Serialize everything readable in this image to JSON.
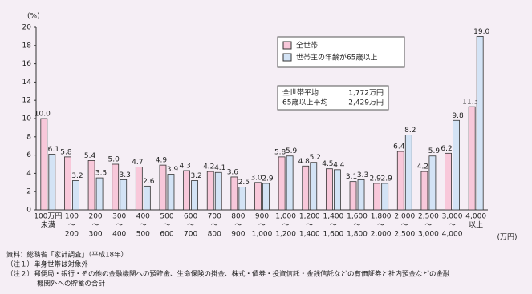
{
  "chart_data": {
    "type": "bar",
    "y_unit": "(%)",
    "x_unit": "(万円)",
    "categories": [
      [
        "100万円",
        "未満"
      ],
      [
        "100",
        "～",
        "200"
      ],
      [
        "200",
        "～",
        "300"
      ],
      [
        "300",
        "～",
        "400"
      ],
      [
        "400",
        "～",
        "500"
      ],
      [
        "500",
        "～",
        "600"
      ],
      [
        "600",
        "～",
        "700"
      ],
      [
        "700",
        "～",
        "800"
      ],
      [
        "800",
        "～",
        "900"
      ],
      [
        "900",
        "～",
        "1,000"
      ],
      [
        "1,000",
        "～",
        "1,200"
      ],
      [
        "1,200",
        "～",
        "1,400"
      ],
      [
        "1,400",
        "～",
        "1,600"
      ],
      [
        "1,600",
        "～",
        "1,800"
      ],
      [
        "1,800",
        "～",
        "2,000"
      ],
      [
        "2,000",
        "～",
        "2,500"
      ],
      [
        "2,500",
        "～",
        "3,000"
      ],
      [
        "3,000",
        "～",
        "4,000"
      ],
      [
        "4,000",
        "以上"
      ]
    ],
    "series": [
      {
        "name": "全世帯",
        "color": "#f8c8da",
        "values": [
          10,
          5.8,
          5.4,
          5,
          4.7,
          4.9,
          4.3,
          4.2,
          3.6,
          3,
          5.8,
          4.8,
          4.5,
          3.1,
          2.9,
          6.4,
          4.2,
          6.2,
          11.3
        ],
        "value_labels": [
          "10.0",
          "5.8",
          "5.4",
          "5.0",
          "4.7",
          "4.9",
          "4.3",
          "4.2",
          "3.6",
          "3.0",
          "5.8",
          "4.8",
          "4.5",
          "3.1",
          "2.9",
          "6.4",
          "4.2",
          "6.2",
          "11.3"
        ]
      },
      {
        "name": "世帯主の年齢が65歳以上",
        "color": "#d3e3f5",
        "values": [
          6.1,
          3.2,
          3.5,
          3.3,
          2.6,
          3.9,
          3.2,
          4.1,
          2.5,
          2.9,
          5.9,
          5.2,
          4.4,
          3.3,
          2.9,
          8.2,
          5.9,
          9.8,
          19
        ],
        "value_labels": [
          "6.1",
          "3.2",
          "3.5",
          "3.3",
          "2.6",
          "3.9",
          "3.2",
          "4.1",
          "2.5",
          "2.9",
          "5.9",
          "5.2",
          "4.4",
          "3.3",
          "2.9",
          "8.2",
          "5.9",
          "9.8",
          "19.0"
        ]
      }
    ],
    "ylim": [
      0,
      20
    ],
    "yticks": [
      0,
      2,
      4,
      6,
      8,
      10,
      12,
      14,
      16,
      18,
      20
    ],
    "annotation": [
      [
        "全世帯平均",
        "1,772万円"
      ],
      [
        "65歳以上平均",
        "2,429万円"
      ]
    ]
  },
  "notes": [
    "資料：総務省「家計調査」（平成18年）",
    "（注１）単身世帯は対象外",
    "（注２）郵便局・銀行・その他の金融機関への預貯金、生命保険の掛金、株式・債券・投資信託・金銭信託などの有価証券と社内預金などの金融",
    "機関外への貯蓄の合計"
  ]
}
